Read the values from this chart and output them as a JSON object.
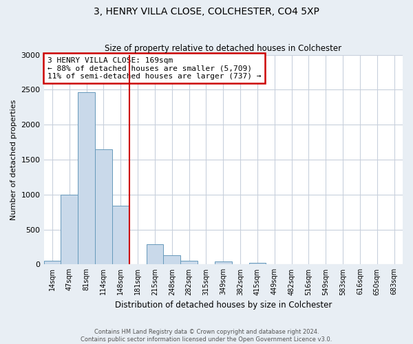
{
  "title": "3, HENRY VILLA CLOSE, COLCHESTER, CO4 5XP",
  "subtitle": "Size of property relative to detached houses in Colchester",
  "xlabel": "Distribution of detached houses by size in Colchester",
  "ylabel": "Number of detached properties",
  "bar_labels": [
    "14sqm",
    "47sqm",
    "81sqm",
    "114sqm",
    "148sqm",
    "181sqm",
    "215sqm",
    "248sqm",
    "282sqm",
    "315sqm",
    "349sqm",
    "382sqm",
    "415sqm",
    "449sqm",
    "482sqm",
    "516sqm",
    "549sqm",
    "583sqm",
    "616sqm",
    "650sqm",
    "683sqm"
  ],
  "bar_values": [
    55,
    1000,
    2460,
    1650,
    840,
    0,
    290,
    130,
    50,
    0,
    45,
    0,
    25,
    0,
    0,
    0,
    0,
    0,
    0,
    0,
    0
  ],
  "bar_color": "#c9d9ea",
  "bar_edge_color": "#6699bb",
  "vline_x": 5.5,
  "vline_color": "#cc0000",
  "ylim": [
    0,
    3000
  ],
  "yticks": [
    0,
    500,
    1000,
    1500,
    2000,
    2500,
    3000
  ],
  "annotation_title": "3 HENRY VILLA CLOSE: 169sqm",
  "annotation_line1": "← 88% of detached houses are smaller (5,709)",
  "annotation_line2": "11% of semi-detached houses are larger (737) →",
  "annotation_box_color": "#cc0000",
  "footer1": "Contains HM Land Registry data © Crown copyright and database right 2024.",
  "footer2": "Contains public sector information licensed under the Open Government Licence v3.0.",
  "background_color": "#e8eef4",
  "plot_bg_color": "#ffffff",
  "grid_color": "#c8d0dc"
}
